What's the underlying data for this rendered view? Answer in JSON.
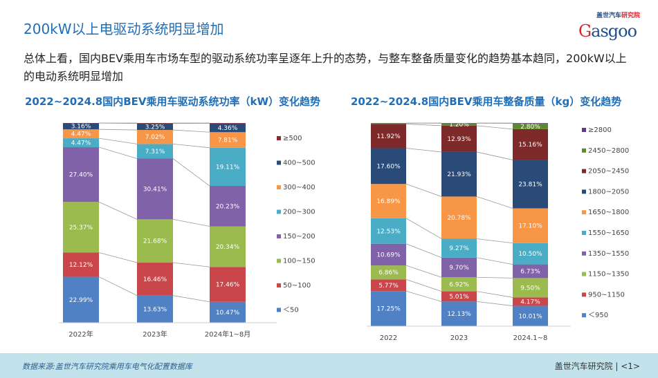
{
  "title": "200kW以上电驱动系统明显增加",
  "summary": "总体上看，国内BEV乘用车市场车型的驱动系统功率呈逐年上升的态势，与整车整备质量变化的趋势基本趋同，200kW以上的电动系统明显增加",
  "logo": {
    "cn": "盖世汽车研究院",
    "en": "Gasgoo"
  },
  "footer": {
    "source": "数据来源:盖世汽车研究院乘用车电气化配置数据库",
    "org": "盖世汽车研究院 | <1>"
  },
  "chart_data": [
    {
      "type": "bar",
      "stacked": true,
      "percent": true,
      "title": "2022~2024.8国内BEV乘用车驱动系统功率（kW）变化趋势",
      "categories": [
        "2022年",
        "2023年",
        "2024年1~8月"
      ],
      "legend_position": "right",
      "series": [
        {
          "name": "＜50",
          "color": "#4F81C4",
          "values": [
            22.99,
            13.63,
            10.47
          ]
        },
        {
          "name": "50~100",
          "color": "#C9474A",
          "values": [
            12.12,
            16.46,
            17.46
          ]
        },
        {
          "name": "100~150",
          "color": "#9BBB4F",
          "values": [
            25.37,
            21.68,
            20.34
          ]
        },
        {
          "name": "150~200",
          "color": "#7F62A8",
          "values": [
            27.4,
            30.41,
            20.23
          ]
        },
        {
          "name": "200~300",
          "color": "#4BACC6",
          "values": [
            4.47,
            7.31,
            19.11
          ]
        },
        {
          "name": "300~400",
          "color": "#F79646",
          "values": [
            4.47,
            7.02,
            7.81
          ]
        },
        {
          "name": "400~500",
          "color": "#2A4B78",
          "values": [
            3.16,
            3.25,
            4.36
          ]
        },
        {
          "name": "≥500",
          "color": "#8B2B2B",
          "values": [
            0.02,
            0.24,
            0.22
          ]
        }
      ],
      "labels_shown_min": 1
    },
    {
      "type": "bar",
      "stacked": true,
      "percent": true,
      "title": "2022~2024.8国内BEV乘用车整备质量（kg）变化趋势",
      "categories": [
        "2022",
        "2023",
        "2024.1~8"
      ],
      "legend_position": "right",
      "series": [
        {
          "name": "＜950",
          "color": "#4F81C4",
          "values": [
            17.25,
            12.13,
            10.01
          ]
        },
        {
          "name": "950~1150",
          "color": "#C9474A",
          "values": [
            5.77,
            5.01,
            4.17
          ]
        },
        {
          "name": "1150~1350",
          "color": "#9BBB4F",
          "values": [
            6.86,
            6.92,
            9.5
          ]
        },
        {
          "name": "1350~1550",
          "color": "#7F62A8",
          "values": [
            10.69,
            9.7,
            6.73
          ]
        },
        {
          "name": "1550~1650",
          "color": "#4BACC6",
          "values": [
            12.53,
            9.27,
            10.5
          ]
        },
        {
          "name": "1650~1800",
          "color": "#F79646",
          "values": [
            16.89,
            20.78,
            17.1
          ]
        },
        {
          "name": "1800~2050",
          "color": "#2A4B78",
          "values": [
            17.6,
            21.93,
            23.81
          ]
        },
        {
          "name": "2050~2450",
          "color": "#7F2A2A",
          "values": [
            11.92,
            12.93,
            15.16
          ]
        },
        {
          "name": "2450~2800",
          "color": "#5E8A2E",
          "values": [
            0.4,
            1.2,
            2.8
          ]
        },
        {
          "name": "≥2800",
          "color": "#5B3C88",
          "values": [
            0.09,
            0.13,
            0.22
          ]
        }
      ],
      "labels_shown_min": 1
    }
  ]
}
